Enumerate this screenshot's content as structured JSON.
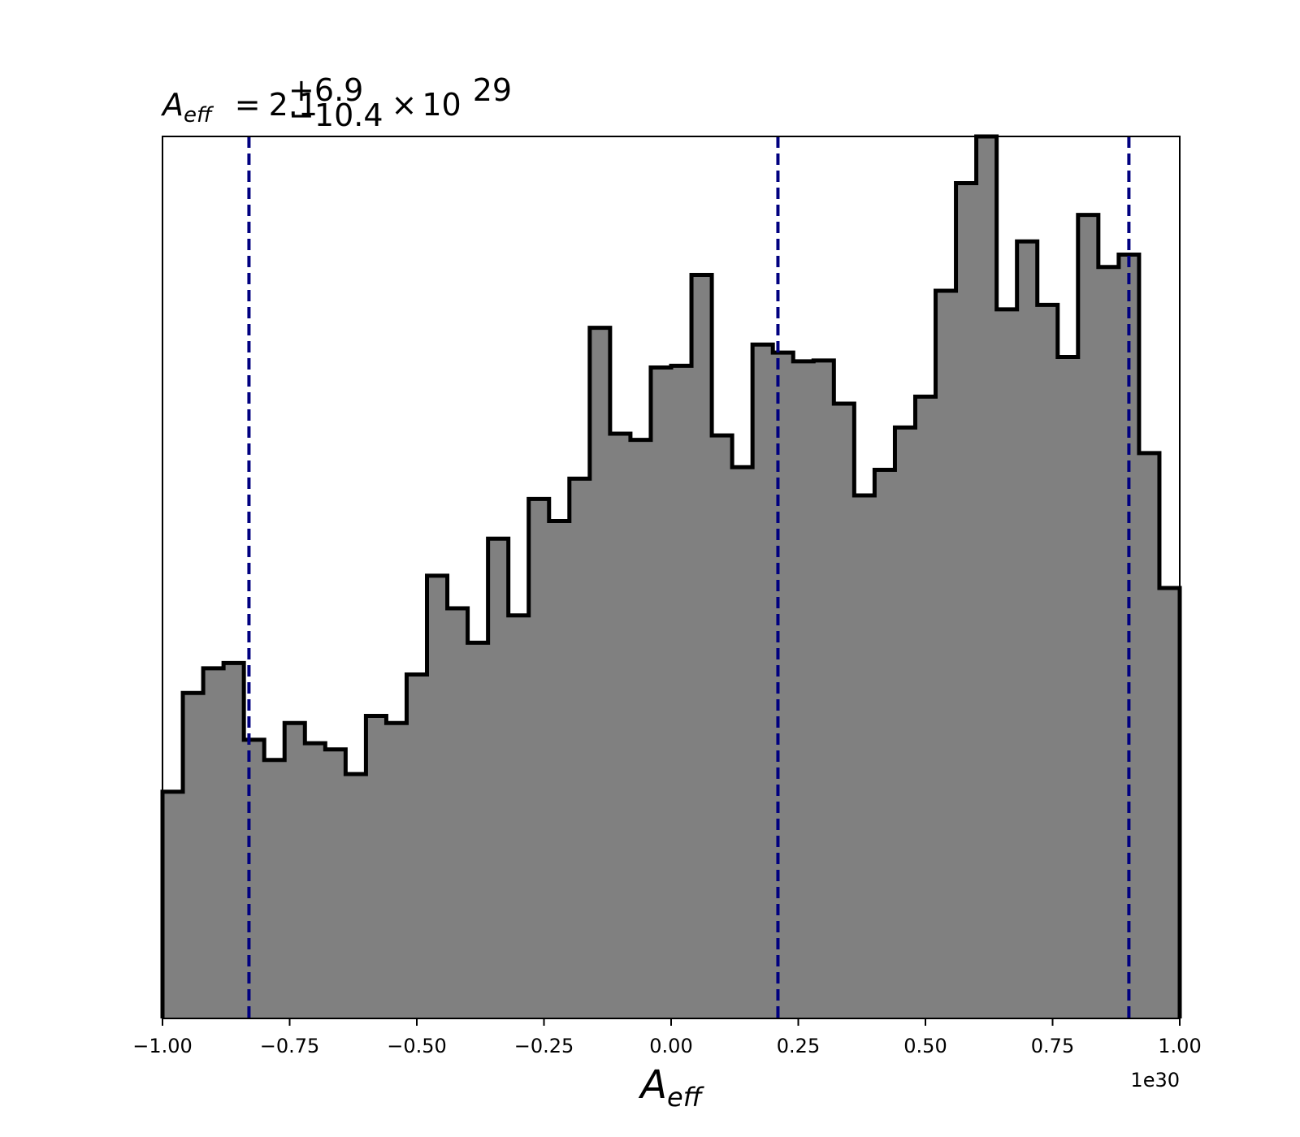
{
  "chart_data": {
    "type": "bar",
    "subtype": "histogram-step",
    "title": {
      "variable": "A",
      "variable_subscript": "eff",
      "equals": "=",
      "median": "2.1",
      "upper": "+6.9",
      "lower": "−10.4",
      "times": "×",
      "base": "10",
      "exponent": "29"
    },
    "xlabel": {
      "variable": "A",
      "subscript": "eff"
    },
    "ylabel": "",
    "x_offset_label": "1e30",
    "xlim": [
      -1.0,
      1.0
    ],
    "ylim": [
      0,
      1.0
    ],
    "x_ticks": [
      -1.0,
      -0.75,
      -0.5,
      -0.25,
      0.0,
      0.25,
      0.5,
      0.75,
      1.0
    ],
    "x_tick_labels": [
      "−1.00",
      "−0.75",
      "−0.50",
      "−0.25",
      "0.00",
      "0.25",
      "0.50",
      "0.75",
      "1.00"
    ],
    "y_ticks_visible": false,
    "grid": false,
    "bin_edges": [
      -1.0,
      -0.96,
      -0.92,
      -0.88,
      -0.84,
      -0.8,
      -0.76,
      -0.72,
      -0.68,
      -0.64,
      -0.6,
      -0.56,
      -0.52,
      -0.48,
      -0.44,
      -0.4,
      -0.36,
      -0.32,
      -0.28,
      -0.24,
      -0.2,
      -0.16,
      -0.12,
      -0.08,
      -0.04,
      0.0,
      0.04,
      0.08,
      0.12,
      0.16,
      0.2,
      0.24,
      0.28,
      0.32,
      0.36,
      0.4,
      0.44,
      0.48,
      0.52,
      0.56,
      0.6,
      0.64,
      0.68,
      0.72,
      0.76,
      0.8,
      0.84,
      0.88,
      0.92,
      0.96,
      1.0
    ],
    "values": [
      0.257,
      0.369,
      0.397,
      0.403,
      0.316,
      0.293,
      0.335,
      0.312,
      0.305,
      0.277,
      0.343,
      0.335,
      0.39,
      0.502,
      0.465,
      0.426,
      0.544,
      0.457,
      0.589,
      0.564,
      0.612,
      0.783,
      0.663,
      0.656,
      0.738,
      0.74,
      0.843,
      0.661,
      0.625,
      0.764,
      0.755,
      0.745,
      0.746,
      0.697,
      0.593,
      0.622,
      0.67,
      0.705,
      0.825,
      0.947,
      1.0,
      0.804,
      0.881,
      0.809,
      0.75,
      0.911,
      0.852,
      0.866,
      0.641,
      0.488
    ],
    "quantile_lines": [
      -0.83,
      0.21,
      0.9
    ],
    "colors": {
      "fill": "#808080",
      "edge": "#000000",
      "quantile_line": "#000080"
    }
  }
}
